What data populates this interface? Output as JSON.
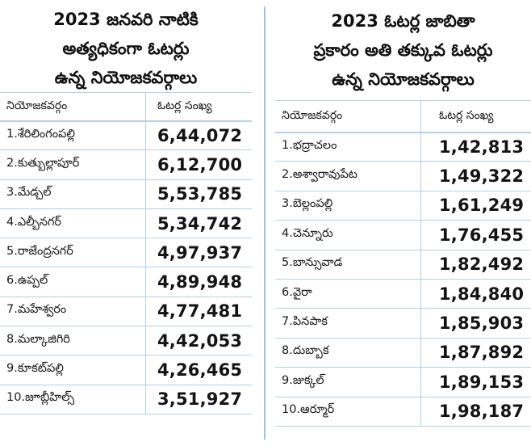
{
  "left": {
    "title_lines": [
      "2023 జనవరి నాటికి",
      "అత్యధికంగా ఓటర్లు",
      "ఉన్న నియోజకవర్గాలు"
    ],
    "headers": {
      "constituency": "నియోజకవర్గం",
      "voters": "ఓటర్ల సంఖ్య"
    },
    "rows": [
      {
        "name": "1.శేరిలింగంపల్లి",
        "voters": "6,44,072"
      },
      {
        "name": "2.కుత్బుల్లాపూర్",
        "voters": "6,12,700"
      },
      {
        "name": "3.మేడ్చల్",
        "voters": "5,53,785"
      },
      {
        "name": "4.ఎల్బీనగర్",
        "voters": "5,34,742"
      },
      {
        "name": "5.రాజేంద్రనగర్",
        "voters": "4,97,937"
      },
      {
        "name": "6.ఉప్పల్",
        "voters": "4,89,948"
      },
      {
        "name": "7.మహేశ్వరం",
        "voters": "4,77,481"
      },
      {
        "name": "8.మల్కాజిగిరి",
        "voters": "4,42,053"
      },
      {
        "name": "9.కూకట్‌పల్లి",
        "voters": "4,26,465"
      },
      {
        "name": "10.జూబ్లీహిల్స్",
        "voters": "3,51,927"
      }
    ]
  },
  "right": {
    "title_lines": [
      "2023 ఓటర్ల జాబితా",
      "ప్రకారం అతి తక్కువ ఓటర్లు",
      "ఉన్న నియోజకవర్గాలు"
    ],
    "headers": {
      "constituency": "నియోజకవర్గం",
      "voters": "ఓటర్ల సంఖ్య"
    },
    "rows": [
      {
        "name": "1.భద్రాచలం",
        "voters": "1,42,813"
      },
      {
        "name": "2.అశ్వారావుపేట",
        "voters": "1,49,322"
      },
      {
        "name": "3.బెల్లంపల్లి",
        "voters": "1,61,249"
      },
      {
        "name": "4.చెన్నూరు",
        "voters": "1,76,455"
      },
      {
        "name": "5.బాన్సువాడ",
        "voters": "1,82,492"
      },
      {
        "name": "6.వైరా",
        "voters": "1,84,840"
      },
      {
        "name": "7.పినపాక",
        "voters": "1,85,903"
      },
      {
        "name": "8.దుబ్బాక",
        "voters": "1,87,892"
      },
      {
        "name": "9.జుక్కల్",
        "voters": "1,89,153"
      },
      {
        "name": "10.ఆర్మూర్",
        "voters": "1,98,187"
      }
    ]
  },
  "colors": {
    "rule": "#b9cfe3",
    "divider": "#9cc3e6",
    "text": "#161616"
  }
}
